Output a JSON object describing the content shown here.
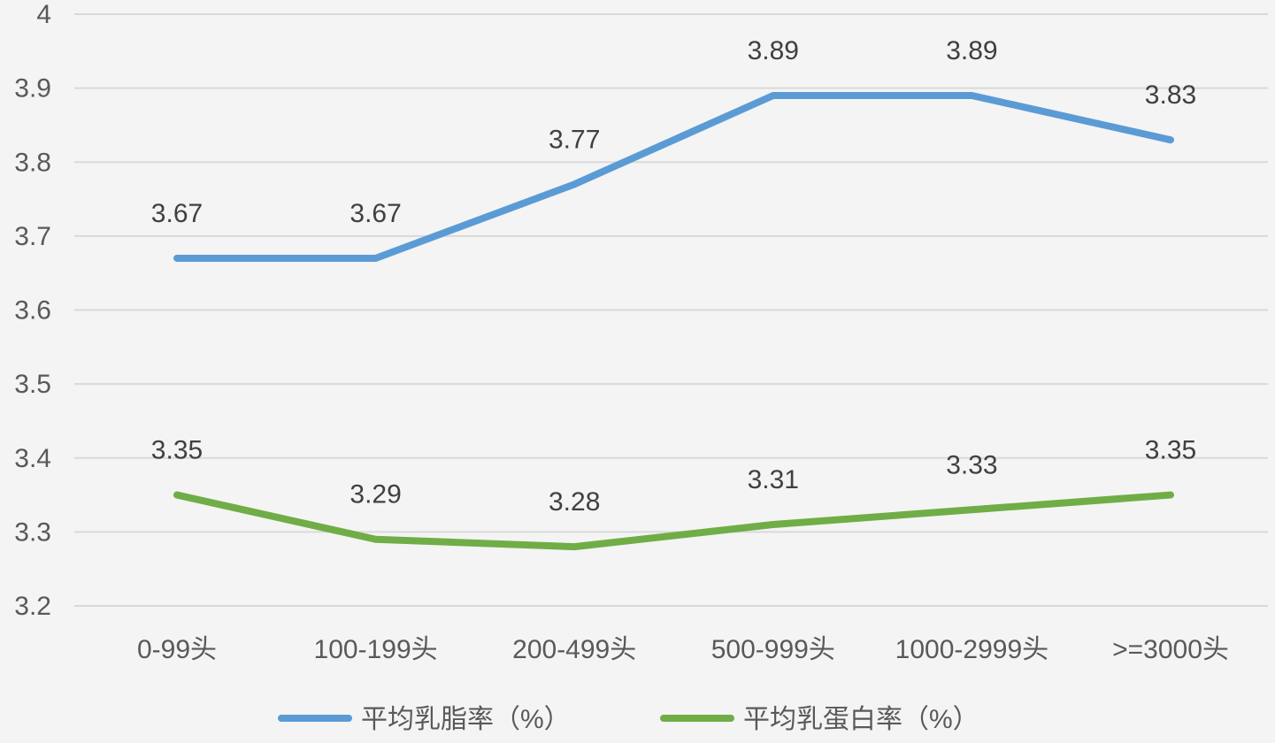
{
  "chart_data": {
    "type": "line",
    "categories": [
      "0-99头",
      "100-199头",
      "200-499头",
      "500-999头",
      "1000-2999头",
      ">=3000头"
    ],
    "series": [
      {
        "name": "平均乳脂率（%）",
        "color": "#5b9bd5",
        "values": [
          3.67,
          3.67,
          3.77,
          3.89,
          3.89,
          3.83
        ]
      },
      {
        "name": "平均乳蛋白率（%）",
        "color": "#70ad47",
        "values": [
          3.35,
          3.29,
          3.28,
          3.31,
          3.33,
          3.35
        ]
      }
    ],
    "y_ticks": [
      "4",
      "3.9",
      "3.8",
      "3.7",
      "3.6",
      "3.5",
      "3.4",
      "3.3",
      "3.2"
    ],
    "ylim": [
      3.2,
      4.0
    ],
    "y_step": 0.1,
    "grid": true,
    "data_labels": true,
    "legend_position": "bottom",
    "gridline_color": "#d9d9d9",
    "background_color": "#f4f4f4"
  }
}
